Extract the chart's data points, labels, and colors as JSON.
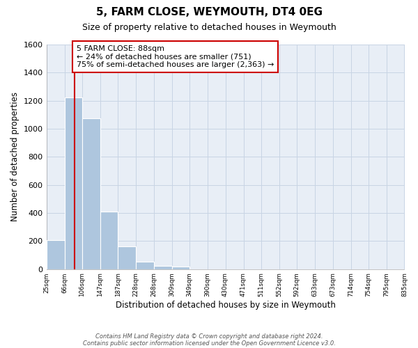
{
  "title": "5, FARM CLOSE, WEYMOUTH, DT4 0EG",
  "subtitle": "Size of property relative to detached houses in Weymouth",
  "xlabel": "Distribution of detached houses by size in Weymouth",
  "ylabel": "Number of detached properties",
  "bar_edges": [
    25,
    66,
    106,
    147,
    187,
    228,
    268,
    309,
    349,
    390,
    430,
    471,
    511,
    552,
    592,
    633,
    673,
    714,
    754,
    795,
    835
  ],
  "bar_heights": [
    205,
    1225,
    1075,
    410,
    160,
    52,
    25,
    18,
    0,
    0,
    0,
    0,
    0,
    0,
    0,
    0,
    0,
    0,
    0,
    0
  ],
  "property_line_x": 88,
  "bar_color": "#aec6de",
  "bar_edge_color": "#aec6de",
  "property_line_color": "#cc0000",
  "annotation_line1": "5 FARM CLOSE: 88sqm",
  "annotation_line2": "← 24% of detached houses are smaller (751)",
  "annotation_line3": "75% of semi-detached houses are larger (2,363) →",
  "annotation_box_color": "#ffffff",
  "annotation_box_edge_color": "#cc0000",
  "ylim": [
    0,
    1600
  ],
  "yticks": [
    0,
    200,
    400,
    600,
    800,
    1000,
    1200,
    1400,
    1600
  ],
  "grid_color": "#c8d4e4",
  "background_color": "#e8eef6",
  "footer_line1": "Contains HM Land Registry data © Crown copyright and database right 2024.",
  "footer_line2": "Contains public sector information licensed under the Open Government Licence v3.0.",
  "tick_labels": [
    "25sqm",
    "66sqm",
    "106sqm",
    "147sqm",
    "187sqm",
    "228sqm",
    "268sqm",
    "309sqm",
    "349sqm",
    "390sqm",
    "430sqm",
    "471sqm",
    "511sqm",
    "552sqm",
    "592sqm",
    "633sqm",
    "673sqm",
    "714sqm",
    "754sqm",
    "795sqm",
    "835sqm"
  ]
}
